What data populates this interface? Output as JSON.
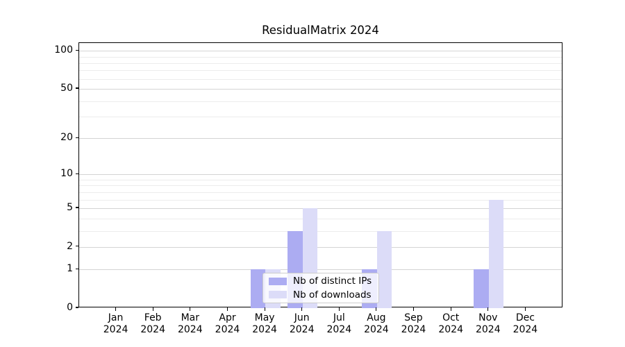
{
  "chart_data": {
    "type": "bar",
    "title": "ResidualMatrix 2024",
    "categories": [
      "Jan",
      "Feb",
      "Mar",
      "Apr",
      "May",
      "Jun",
      "Jul",
      "Aug",
      "Sep",
      "Oct",
      "Nov",
      "Dec"
    ],
    "year_label": "2024",
    "series": [
      {
        "name": "Nb of distinct IPs",
        "color": "#acacf2",
        "values": [
          0,
          0,
          0,
          0,
          1,
          3,
          0,
          1,
          0,
          0,
          1,
          0
        ]
      },
      {
        "name": "Nb of downloads",
        "color": "#dcdcf8",
        "values": [
          0,
          0,
          0,
          0,
          1,
          5,
          0,
          3,
          0,
          0,
          6,
          0
        ]
      }
    ],
    "xlabel": "",
    "ylabel": "",
    "yscale": "log1p",
    "ylim": [
      0,
      115
    ],
    "yticks": [
      0,
      1,
      2,
      5,
      10,
      20,
      50,
      100
    ],
    "minor_gridlines": [
      3,
      4,
      6,
      7,
      8,
      9,
      30,
      40,
      60,
      70,
      80,
      90
    ],
    "grid": "on",
    "legend_position": "bottom-center",
    "colors": {
      "axis": "#000000",
      "major_grid": "#d4d4d4",
      "minor_grid": "#ececec",
      "legend_border": "#cccccc"
    }
  }
}
